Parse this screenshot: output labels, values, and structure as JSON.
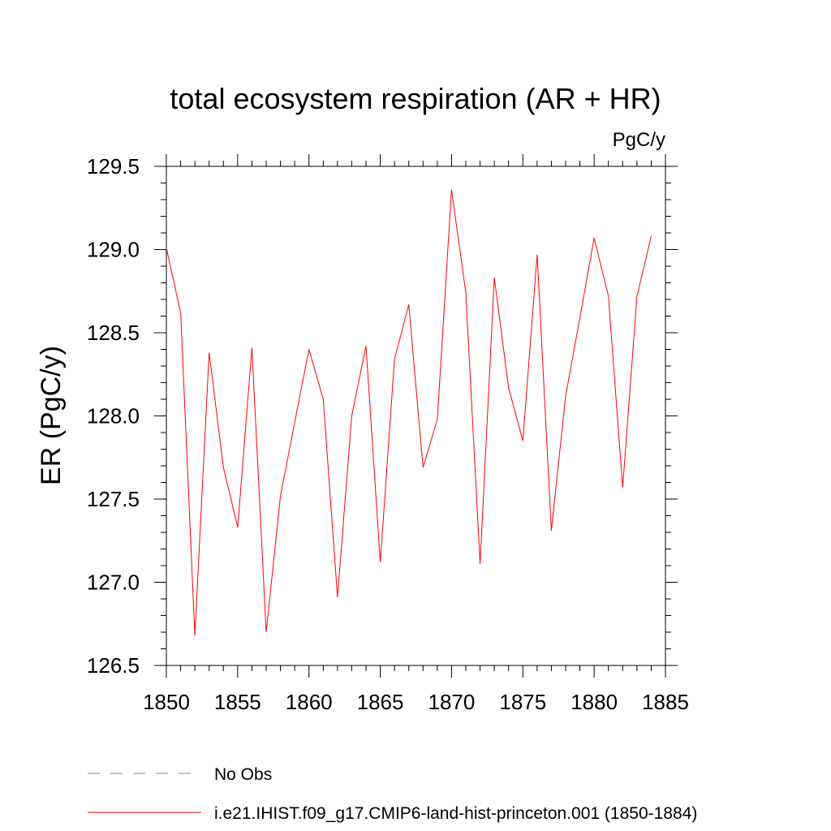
{
  "chart_data": {
    "type": "line",
    "title": "total ecosystem respiration (AR + HR)",
    "units": "PgC/y",
    "ylabel": "ER  (PgC/y)",
    "xlabel": "",
    "xlim": [
      1850,
      1885
    ],
    "ylim": [
      126.5,
      129.5
    ],
    "x_ticks": [
      1850,
      1855,
      1860,
      1865,
      1870,
      1875,
      1880,
      1885
    ],
    "x_tick_labels": [
      "1850",
      "1855",
      "1860",
      "1865",
      "1870",
      "1875",
      "1880",
      "1885"
    ],
    "y_ticks": [
      126.5,
      127.0,
      127.5,
      128.0,
      128.5,
      129.0,
      129.5
    ],
    "y_tick_labels": [
      "126.5",
      "127.0",
      "127.5",
      "128.0",
      "128.5",
      "129.0",
      "129.5"
    ],
    "grid": false,
    "legend_position": "bottom-left",
    "series": [
      {
        "name": "i.e21.IHIST.f09_g17.CMIP6-land-hist-princeton.001 (1850-1884)",
        "color": "#ff0000",
        "style": "solid",
        "x": [
          1850,
          1851,
          1852,
          1853,
          1854,
          1855,
          1856,
          1857,
          1858,
          1859,
          1860,
          1861,
          1862,
          1863,
          1864,
          1865,
          1866,
          1867,
          1868,
          1869,
          1870,
          1871,
          1872,
          1873,
          1874,
          1875,
          1876,
          1877,
          1878,
          1879,
          1880,
          1881,
          1882,
          1883,
          1884
        ],
        "y": [
          129.01,
          128.62,
          126.68,
          128.38,
          127.69,
          127.33,
          128.41,
          126.7,
          127.52,
          127.96,
          128.4,
          128.1,
          126.91,
          128.0,
          128.42,
          127.12,
          128.34,
          128.67,
          127.69,
          127.98,
          129.36,
          128.74,
          127.11,
          128.83,
          128.17,
          127.85,
          128.97,
          127.31,
          128.12,
          128.59,
          129.07,
          128.72,
          127.57,
          128.72,
          129.08
        ]
      }
    ],
    "legend": [
      {
        "label": "No Obs",
        "color": "#8080c0",
        "style": "dashed"
      },
      {
        "label": "i.e21.IHIST.f09_g17.CMIP6-land-hist-princeton.001 (1850-1884)",
        "color": "#ff0000",
        "style": "solid"
      }
    ]
  }
}
